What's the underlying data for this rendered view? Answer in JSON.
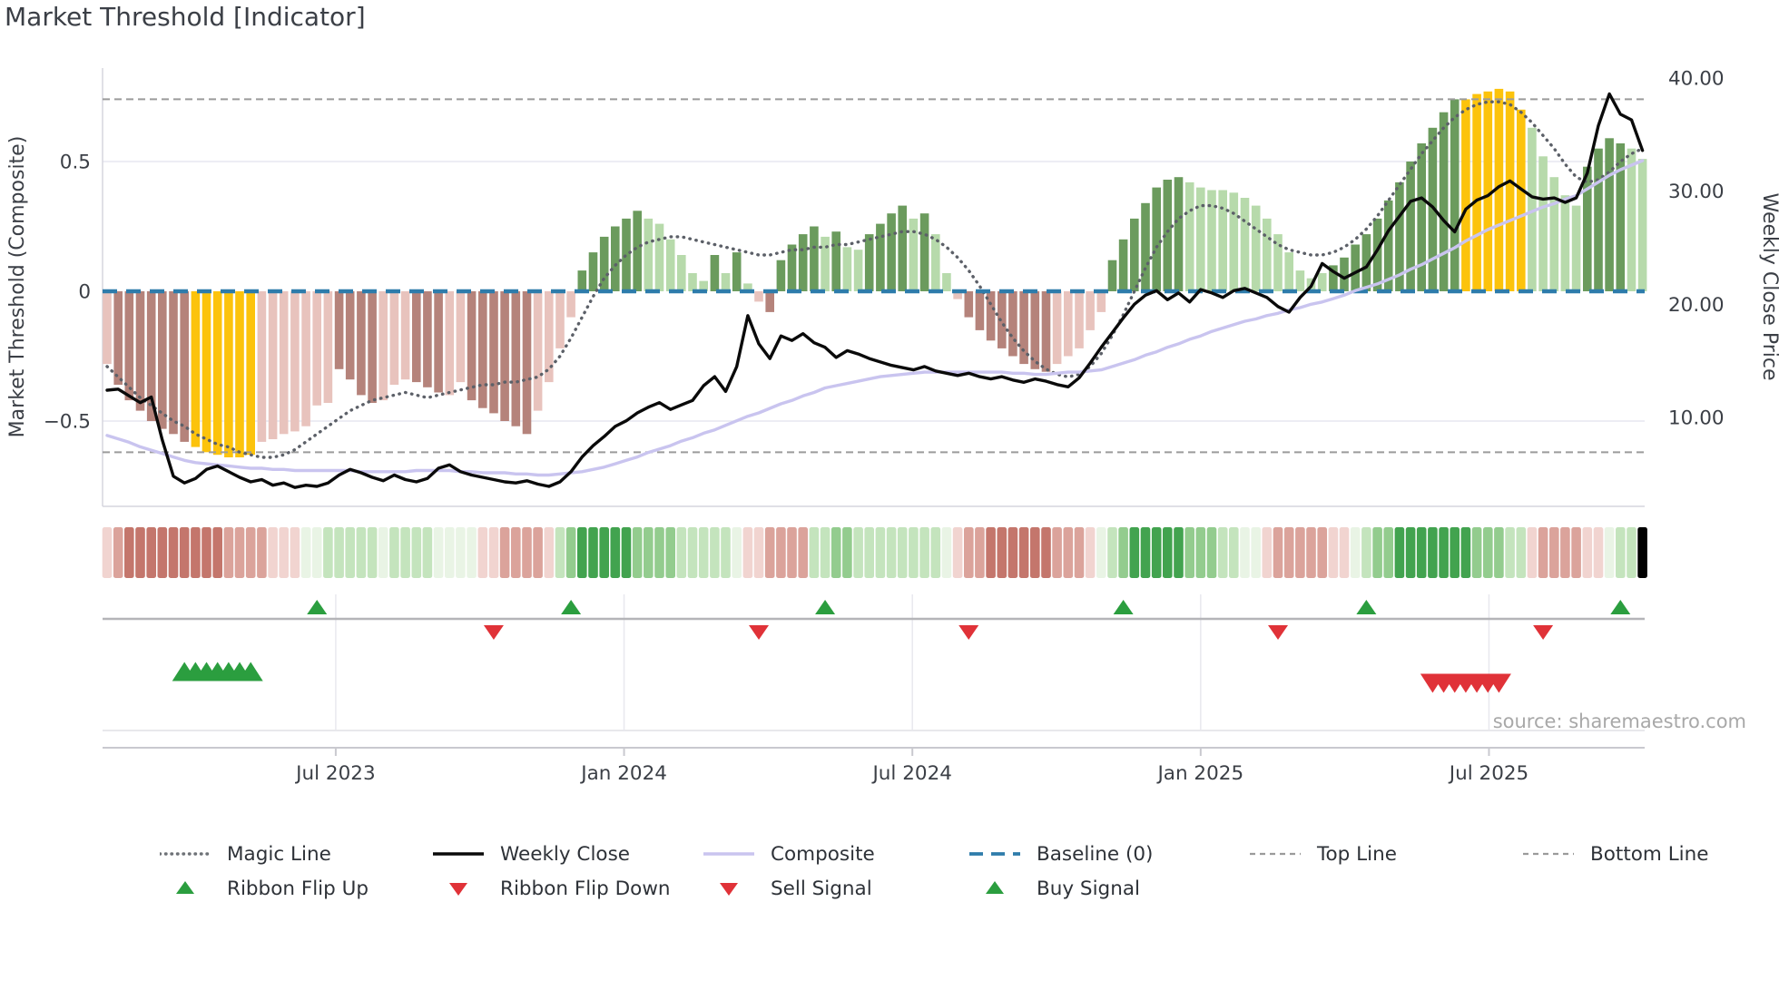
{
  "title": "Market Threshold [Indicator]",
  "source": "source: sharemaestro.com",
  "left_axis": {
    "label": "Market Threshold (Composite)",
    "ticks": [
      {
        "v": 0.5,
        "label": "0.5"
      },
      {
        "v": 0,
        "label": "0"
      },
      {
        "v": -0.5,
        "label": "−0.5"
      }
    ]
  },
  "right_axis": {
    "label": "Weekly Close Price",
    "ticks": [
      {
        "v": 40,
        "label": "40.00"
      },
      {
        "v": 30,
        "label": "30.00"
      },
      {
        "v": 20,
        "label": "20.00"
      },
      {
        "v": 10,
        "label": "10.00"
      }
    ]
  },
  "colors": {
    "bar_light_red": "#e8c3bd",
    "bar_dark_red": "#b5837b",
    "bar_yellow": "#fcc30c",
    "bar_dark_green": "#6b9b5d",
    "bar_light_green": "#b7daab",
    "ribbon_red_light": "#f1d4d0",
    "ribbon_red_mid": "#dba39b",
    "ribbon_red_dark": "#c4766c",
    "ribbon_green_pale": "#e9f4e5",
    "ribbon_green_light": "#c4e4bd",
    "ribbon_green_mid": "#93cc8e",
    "ribbon_green_dark": "#42a34f",
    "magic_line": "#5c6068",
    "weekly_close": "#0a0a0a",
    "composite_line": "#c9c4ef",
    "baseline": "#2e7cab",
    "top_bottom_line": "#9b9b9b",
    "signal_green": "#2b9e3f",
    "signal_red": "#e03238",
    "grid": "#e7e7f1",
    "spine": "#c9c9cf",
    "text": "#3b3f46",
    "source_text": "#a8a8a8"
  },
  "legend": {
    "row1": [
      {
        "label": "Magic Line",
        "swatch": "dotted-gray"
      },
      {
        "label": "Weekly Close",
        "swatch": "solid-black"
      },
      {
        "label": "Composite",
        "swatch": "solid-lavender"
      },
      {
        "label": "Baseline (0)",
        "swatch": "dashed-blue"
      },
      {
        "label": "Top Line",
        "swatch": "dashed-gray"
      },
      {
        "label": "Bottom Line",
        "swatch": "dashed-gray"
      }
    ],
    "row2": [
      {
        "label": "Ribbon Flip Up",
        "swatch": "triangle-up-green"
      },
      {
        "label": "Ribbon Flip Down",
        "swatch": "triangle-down-red"
      },
      {
        "label": "Sell Signal",
        "swatch": "triangle-down-red"
      },
      {
        "label": "Buy Signal",
        "swatch": "triangle-up-green"
      }
    ]
  },
  "chart_data": {
    "type": "bar",
    "subtype": "weekly composite histogram with price overlay, ribbon strip and signal markers",
    "n_weeks": 140,
    "x_ticks": [
      {
        "pos": 20.7,
        "label": "Jul 2023"
      },
      {
        "pos": 46.8,
        "label": "Jan 2024"
      },
      {
        "pos": 72.9,
        "label": "Jul 2024"
      },
      {
        "pos": 99.0,
        "label": "Jan 2025"
      },
      {
        "pos": 125.1,
        "label": "Jul 2025"
      }
    ],
    "ylim_left": [
      -0.83,
      0.86
    ],
    "ylim_right": [
      2.1,
      40.9
    ],
    "baseline": 0,
    "top_line": 0.74,
    "bottom_line": -0.62,
    "composite_histogram": [
      -0.28,
      -0.36,
      -0.42,
      -0.46,
      -0.5,
      -0.53,
      -0.55,
      -0.58,
      -0.6,
      -0.62,
      -0.63,
      -0.64,
      -0.64,
      -0.63,
      -0.58,
      -0.57,
      -0.55,
      -0.54,
      -0.52,
      -0.44,
      -0.43,
      -0.3,
      -0.34,
      -0.4,
      -0.43,
      -0.42,
      -0.36,
      -0.34,
      -0.35,
      -0.37,
      -0.39,
      -0.4,
      -0.35,
      -0.42,
      -0.45,
      -0.47,
      -0.5,
      -0.52,
      -0.55,
      -0.46,
      -0.35,
      -0.22,
      -0.1,
      0.08,
      0.15,
      0.21,
      0.25,
      0.28,
      0.31,
      0.28,
      0.26,
      0.2,
      0.14,
      0.07,
      0.04,
      0.14,
      0.07,
      0.15,
      0.03,
      -0.04,
      -0.08,
      0.12,
      0.18,
      0.22,
      0.25,
      0.21,
      0.23,
      0.17,
      0.16,
      0.22,
      0.26,
      0.3,
      0.33,
      0.28,
      0.3,
      0.22,
      0.07,
      -0.03,
      -0.1,
      -0.15,
      -0.19,
      -0.22,
      -0.25,
      -0.28,
      -0.3,
      -0.31,
      -0.28,
      -0.25,
      -0.22,
      -0.15,
      -0.08,
      0.12,
      0.2,
      0.28,
      0.34,
      0.4,
      0.43,
      0.44,
      0.42,
      0.4,
      0.39,
      0.39,
      0.38,
      0.36,
      0.33,
      0.28,
      0.22,
      0.15,
      0.08,
      0.05,
      0.07,
      0.1,
      0.13,
      0.18,
      0.22,
      0.28,
      0.35,
      0.42,
      0.5,
      0.57,
      0.63,
      0.69,
      0.74,
      0.74,
      0.76,
      0.77,
      0.78,
      0.77,
      0.7,
      0.63,
      0.52,
      0.44,
      0.37,
      0.33,
      0.48,
      0.55,
      0.59,
      0.57,
      0.55,
      0.51
    ],
    "histogram_styles": "PRRRRRRRYYYYYYPPPPPPPRRRRPPPRRRPPRRRRRRPPPPGGGGGGggggggGgGgPRGGGGgGggGGGGgGggPRRRRRRRRPPPPPGGGGGGGgggggggggggggGGGGGGGGGGGGYYYYYYgggggGGGGggg",
    "weekly_close": [
      12.4,
      12.5,
      11.9,
      11.3,
      11.8,
      8.0,
      4.8,
      4.2,
      4.6,
      5.4,
      5.7,
      5.2,
      4.7,
      4.3,
      4.5,
      4.0,
      4.2,
      3.8,
      4.0,
      3.9,
      4.2,
      4.9,
      5.4,
      5.1,
      4.7,
      4.4,
      4.9,
      4.5,
      4.3,
      4.6,
      5.5,
      5.8,
      5.2,
      4.9,
      4.7,
      4.5,
      4.3,
      4.2,
      4.4,
      4.1,
      3.9,
      4.3,
      5.2,
      6.5,
      7.5,
      8.3,
      9.2,
      9.7,
      10.4,
      10.9,
      11.3,
      10.7,
      11.1,
      11.5,
      12.8,
      13.6,
      12.3,
      14.5,
      19.0,
      16.5,
      15.2,
      17.2,
      16.8,
      17.4,
      16.6,
      16.2,
      15.3,
      15.9,
      15.6,
      15.2,
      14.9,
      14.6,
      14.4,
      14.2,
      14.5,
      14.1,
      13.9,
      13.7,
      13.9,
      13.6,
      13.4,
      13.6,
      13.3,
      13.1,
      13.4,
      13.2,
      12.9,
      12.7,
      13.5,
      14.8,
      16.2,
      17.5,
      18.8,
      20.0,
      20.8,
      21.2,
      20.4,
      21.0,
      20.2,
      21.3,
      21.0,
      20.6,
      21.2,
      21.4,
      21.0,
      20.6,
      19.8,
      19.3,
      20.6,
      21.6,
      23.6,
      22.9,
      22.3,
      22.8,
      23.3,
      24.8,
      26.5,
      27.8,
      29.1,
      29.4,
      28.6,
      27.4,
      26.4,
      28.4,
      29.2,
      29.6,
      30.4,
      30.9,
      30.2,
      29.5,
      29.3,
      29.4,
      29.0,
      29.4,
      31.6,
      35.8,
      38.6,
      36.8,
      36.3,
      33.6
    ],
    "composite_line": [
      8.4,
      8.1,
      7.8,
      7.4,
      7.1,
      6.8,
      6.5,
      6.2,
      6.0,
      5.9,
      5.8,
      5.7,
      5.6,
      5.5,
      5.5,
      5.4,
      5.4,
      5.3,
      5.3,
      5.3,
      5.3,
      5.3,
      5.3,
      5.2,
      5.2,
      5.2,
      5.2,
      5.2,
      5.3,
      5.3,
      5.3,
      5.3,
      5.2,
      5.2,
      5.1,
      5.1,
      5.1,
      5.0,
      5.0,
      4.9,
      4.9,
      5.0,
      5.1,
      5.2,
      5.4,
      5.6,
      5.9,
      6.2,
      6.5,
      6.9,
      7.2,
      7.5,
      7.9,
      8.2,
      8.6,
      8.9,
      9.3,
      9.7,
      10.1,
      10.4,
      10.8,
      11.2,
      11.5,
      11.9,
      12.2,
      12.6,
      12.8,
      13.0,
      13.2,
      13.4,
      13.6,
      13.7,
      13.8,
      13.9,
      14.0,
      14.0,
      14.0,
      14.0,
      14.0,
      14.0,
      14.0,
      14.0,
      13.9,
      13.9,
      13.8,
      13.8,
      13.9,
      14.0,
      14.0,
      14.1,
      14.2,
      14.5,
      14.8,
      15.1,
      15.5,
      15.8,
      16.2,
      16.5,
      16.9,
      17.2,
      17.6,
      17.9,
      18.2,
      18.5,
      18.7,
      19.0,
      19.2,
      19.5,
      19.7,
      20.0,
      20.2,
      20.5,
      20.8,
      21.2,
      21.5,
      21.8,
      22.2,
      22.6,
      23.1,
      23.5,
      24.0,
      24.5,
      25.0,
      25.6,
      26.1,
      26.6,
      27.0,
      27.4,
      27.8,
      28.2,
      28.6,
      28.9,
      29.3,
      29.6,
      30.2,
      30.8,
      31.4,
      31.9,
      32.3,
      32.7
    ],
    "magic_line": [
      -0.29,
      -0.33,
      -0.37,
      -0.41,
      -0.44,
      -0.47,
      -0.5,
      -0.52,
      -0.55,
      -0.57,
      -0.59,
      -0.6,
      -0.62,
      -0.63,
      -0.64,
      -0.64,
      -0.63,
      -0.61,
      -0.58,
      -0.55,
      -0.52,
      -0.49,
      -0.46,
      -0.44,
      -0.42,
      -0.41,
      -0.4,
      -0.39,
      -0.4,
      -0.41,
      -0.4,
      -0.39,
      -0.38,
      -0.37,
      -0.36,
      -0.36,
      -0.35,
      -0.35,
      -0.34,
      -0.33,
      -0.3,
      -0.25,
      -0.18,
      -0.1,
      -0.02,
      0.05,
      0.1,
      0.14,
      0.17,
      0.19,
      0.2,
      0.21,
      0.21,
      0.2,
      0.19,
      0.18,
      0.17,
      0.16,
      0.15,
      0.14,
      0.14,
      0.15,
      0.16,
      0.16,
      0.17,
      0.17,
      0.18,
      0.18,
      0.19,
      0.2,
      0.21,
      0.22,
      0.23,
      0.23,
      0.22,
      0.2,
      0.17,
      0.13,
      0.08,
      0.02,
      -0.05,
      -0.12,
      -0.18,
      -0.23,
      -0.27,
      -0.3,
      -0.32,
      -0.33,
      -0.32,
      -0.29,
      -0.24,
      -0.17,
      -0.09,
      0.0,
      0.09,
      0.17,
      0.23,
      0.28,
      0.31,
      0.33,
      0.33,
      0.32,
      0.3,
      0.27,
      0.24,
      0.21,
      0.18,
      0.16,
      0.15,
      0.14,
      0.14,
      0.15,
      0.17,
      0.2,
      0.24,
      0.29,
      0.35,
      0.41,
      0.47,
      0.53,
      0.58,
      0.63,
      0.67,
      0.7,
      0.72,
      0.73,
      0.73,
      0.72,
      0.69,
      0.65,
      0.6,
      0.55,
      0.49,
      0.44,
      0.42,
      0.43,
      0.46,
      0.5,
      0.53,
      0.55
    ],
    "ribbon_cells": "abcccccccccbbbbaaawwxxxxxwxxxxwwwwaabbbbaxyzzzzzyyyyxxxxxwaabbbbxxyyxxxxxxxxwabbccccccbbbawxyzzzzzyyyxxwwabbbbbaawxyyzzzzzzzyyyxxabbbbaawxx",
    "signals": {
      "ribbon_flip_up_weeks": [
        19,
        42,
        65,
        92,
        114,
        137
      ],
      "ribbon_flip_down_weeks": [
        35,
        59,
        78,
        106,
        130
      ],
      "buy_signal_weeks": [
        7,
        8,
        9,
        10,
        11,
        12,
        13
      ],
      "sell_signal_weeks": [
        120,
        121,
        122,
        123,
        124,
        125,
        126
      ]
    }
  }
}
